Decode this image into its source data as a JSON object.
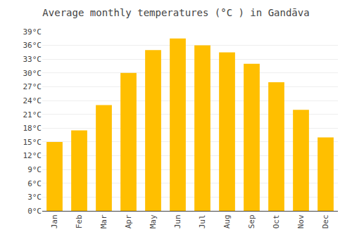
{
  "chart_data": {
    "type": "bar",
    "title": "Average monthly temperatures (°C ) in Gandāva",
    "categories": [
      "Jan",
      "Feb",
      "Mar",
      "Apr",
      "May",
      "Jun",
      "Jul",
      "Aug",
      "Sep",
      "Oct",
      "Nov",
      "Dec"
    ],
    "values": [
      15,
      17.5,
      23,
      30,
      35,
      37.5,
      36,
      34.5,
      32,
      28,
      22,
      16
    ],
    "color": "#FFBF00",
    "ylim": [
      0,
      39
    ],
    "yticks": [
      {
        "value": 0,
        "label": "0°C"
      },
      {
        "value": 3,
        "label": "3°C"
      },
      {
        "value": 6,
        "label": "6°C"
      },
      {
        "value": 9,
        "label": "9°C"
      },
      {
        "value": 12,
        "label": "12°C"
      },
      {
        "value": 15,
        "label": "15°C"
      },
      {
        "value": 18,
        "label": "18°C"
      },
      {
        "value": 21,
        "label": "21°C"
      },
      {
        "value": 24,
        "label": "24°C"
      },
      {
        "value": 27,
        "label": "27°C"
      },
      {
        "value": 30,
        "label": "30°C"
      },
      {
        "value": 33,
        "label": "33°C"
      },
      {
        "value": 36,
        "label": "36°C"
      },
      {
        "value": 39,
        "label": "39°C"
      }
    ],
    "grid": true
  }
}
